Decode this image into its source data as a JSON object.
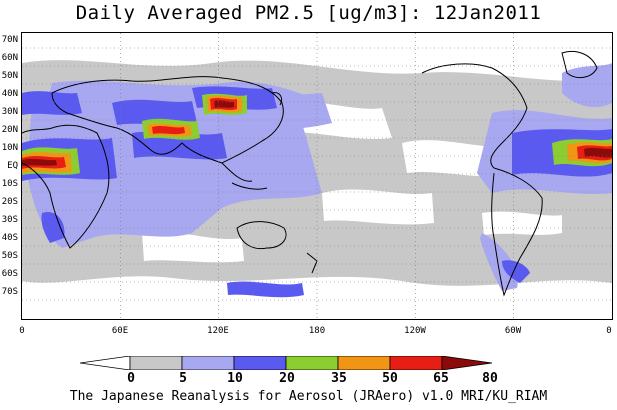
{
  "title": "Daily Averaged PM2.5 [ug/m3]: 12Jan2011",
  "latitude_labels": [
    "70N",
    "60N",
    "50N",
    "40N",
    "30N",
    "20N",
    "10N",
    "EQ",
    "10S",
    "20S",
    "30S",
    "40S",
    "50S",
    "60S",
    "70S"
  ],
  "longitude_labels": [
    "0",
    "60E",
    "120E",
    "180",
    "120W",
    "60W",
    "0"
  ],
  "colorbar": {
    "levels": [
      "0",
      "5",
      "10",
      "20",
      "35",
      "50",
      "65",
      "80"
    ],
    "colors": [
      "#ffffff",
      "#c8c8c8",
      "#a8a8f0",
      "#5a5af0",
      "#8ccd32",
      "#f09614",
      "#e61e14",
      "#8c0a0a"
    ]
  },
  "credit": "The Japanese Reanalysis for Aerosol (JRAero) v1.0 MRI/KU_RIAM"
}
